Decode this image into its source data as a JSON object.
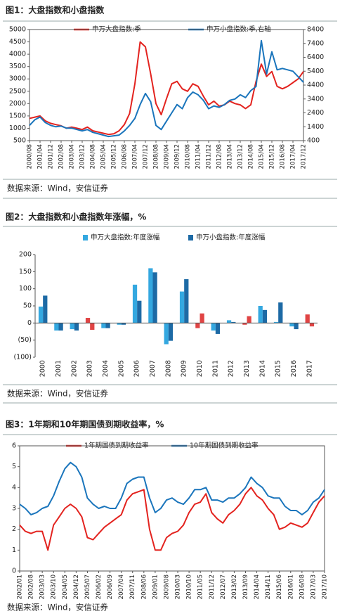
{
  "chart_data": [
    {
      "type": "line",
      "title": "图1：大盘指数和小盘指数",
      "source": "数据来源：Wind，安信证券",
      "categories": [
        "2000/08",
        null,
        "2001/04",
        null,
        "2001/12",
        null,
        "2002/08",
        null,
        "2003/04",
        null,
        "2003/12",
        null,
        "2004/08",
        null,
        "2005/04",
        null,
        "2005/12",
        null,
        "2006/08",
        null,
        "2007/04",
        null,
        "2007/12",
        null,
        "2008/08",
        null,
        "2009/04",
        null,
        "2009/12",
        null,
        "2010/08",
        null,
        "2011/04",
        null,
        "2011/12",
        null,
        "2012/08",
        null,
        "2013/04",
        null,
        "2013/12",
        null,
        "2014/08",
        null,
        "2015/04",
        null,
        "2015/12",
        null,
        "2016/08",
        null,
        "2017/04",
        null,
        "2017/12"
      ],
      "series": [
        {
          "name": "申万大盘指数:季",
          "color": "#e3231f",
          "values": [
            1400,
            1450,
            1500,
            1300,
            1200,
            1150,
            1100,
            1000,
            1050,
            1000,
            950,
            1050,
            900,
            850,
            800,
            750,
            780,
            900,
            1150,
            1600,
            2800,
            4500,
            4300,
            3200,
            2000,
            1550,
            2200,
            2800,
            2900,
            2600,
            2500,
            2800,
            2700,
            2300,
            1950,
            2100,
            1900,
            1950,
            2100,
            2000,
            1950,
            1800,
            1950,
            2900,
            3600,
            3100,
            3300,
            2700,
            2600,
            2700,
            2850,
            3000,
            3300
          ]
        },
        {
          "name": "申万小盘指数:季,右轴",
          "color": "#1a75bc",
          "axis": "y2",
          "values": [
            1500,
            1900,
            2100,
            1700,
            1500,
            1400,
            1450,
            1300,
            1300,
            1200,
            1100,
            1200,
            1000,
            900,
            800,
            700,
            750,
            800,
            1100,
            1500,
            2000,
            3000,
            3800,
            3200,
            1500,
            1200,
            1800,
            2400,
            3000,
            2700,
            3500,
            3900,
            3700,
            3300,
            2700,
            2900,
            2800,
            3000,
            3300,
            3400,
            3700,
            3500,
            4000,
            4300,
            7600,
            5200,
            6800,
            5500,
            5600,
            5500,
            5400,
            5000,
            4600
          ]
        }
      ],
      "ylim": [
        500,
        5000
      ],
      "yticks": [
        500,
        1000,
        1500,
        2000,
        2500,
        3000,
        3500,
        4000,
        4500,
        5000
      ],
      "y2lim": [
        400,
        8400
      ],
      "y2ticks": [
        400,
        1400,
        2400,
        3400,
        4400,
        5400,
        6400,
        7400,
        8400
      ]
    },
    {
      "type": "bar",
      "title": "图2：大盘指数和小盘指数年涨幅，%",
      "source": "数据来源：Wind，安信证券",
      "categories": [
        "2000",
        "2001",
        "2002",
        "2003",
        "2004",
        "2005",
        "2006",
        "2007",
        "2008",
        "2009",
        "2010",
        "2011",
        "2012",
        "2013",
        "2014",
        "2015",
        "2016",
        "2017"
      ],
      "series": [
        {
          "name": "申万大盘指数:年度涨幅",
          "color": "#34a8e0",
          "values": [
            48,
            -22,
            -18,
            15,
            -15,
            -5,
            112,
            160,
            -62,
            92,
            -15,
            -22,
            8,
            -5,
            50,
            3,
            -10,
            25
          ],
          "colors": [
            "#34a8e0",
            "#34a8e0",
            "#34a8e0",
            "#e04444",
            "#34a8e0",
            "#34a8e0",
            "#34a8e0",
            "#34a8e0",
            "#34a8e0",
            "#34a8e0",
            "#e04444",
            "#34a8e0",
            "#34a8e0",
            "#e04444",
            "#34a8e0",
            "#34a8e0",
            "#34a8e0",
            "#e04444"
          ]
        },
        {
          "name": "申万小盘指数:年度涨幅",
          "color": "#1d6aa5",
          "values": [
            80,
            -22,
            -22,
            -20,
            -15,
            -5,
            65,
            148,
            -52,
            128,
            28,
            -32,
            3,
            20,
            38,
            60,
            -18,
            -10
          ],
          "colors": [
            "#1d6aa5",
            "#1d6aa5",
            "#1d6aa5",
            "#e04444",
            "#1d6aa5",
            "#1d6aa5",
            "#1d6aa5",
            "#1d6aa5",
            "#1d6aa5",
            "#1d6aa5",
            "#e04444",
            "#1d6aa5",
            "#1d6aa5",
            "#e04444",
            "#1d6aa5",
            "#1d6aa5",
            "#1d6aa5",
            "#e04444"
          ]
        }
      ],
      "ylim": [
        -100,
        200
      ],
      "yticks": [
        {
          "value": -100,
          "label": "(100)"
        },
        {
          "value": -50,
          "label": "(50)"
        },
        0,
        50,
        100,
        150,
        200
      ]
    },
    {
      "type": "line",
      "title": "图3：1年期和10年期国债到期收益率，%",
      "source": "数据来源：Wind，安信证券",
      "categories": [
        "2002/01",
        null,
        "2002/08",
        null,
        "2003/03",
        null,
        "2003/10",
        null,
        "2004/05",
        null,
        "2004/12",
        null,
        "2005/07",
        null,
        "2006/02",
        null,
        "2006/09",
        null,
        "2007/04",
        null,
        "2007/11",
        null,
        "2008/06",
        null,
        "2009/01",
        null,
        "2009/08",
        null,
        "2010/03",
        null,
        "2010/10",
        null,
        "2011/05",
        null,
        "2011/12",
        null,
        "2012/07",
        null,
        "2013/02",
        null,
        "2013/09",
        null,
        "2014/04",
        null,
        "2014/11",
        null,
        "2015/06",
        null,
        "2016/01",
        null,
        "2016/08",
        null,
        "2017/03",
        null,
        "2017/10"
      ],
      "series": [
        {
          "name": "1年期国债到期收益率",
          "color": "#e3231f",
          "values": [
            2.2,
            1.9,
            1.8,
            1.9,
            1.9,
            1.0,
            2.2,
            2.6,
            3.0,
            3.2,
            3.0,
            2.6,
            1.6,
            1.5,
            1.8,
            2.1,
            2.3,
            2.5,
            2.7,
            3.4,
            3.7,
            3.8,
            3.9,
            2.0,
            1.0,
            1.0,
            1.6,
            1.8,
            1.9,
            2.2,
            2.8,
            3.2,
            3.3,
            3.7,
            2.8,
            2.5,
            2.3,
            2.7,
            2.9,
            3.2,
            3.7,
            4.0,
            3.6,
            3.4,
            3.0,
            2.7,
            2.0,
            2.1,
            2.3,
            2.2,
            2.1,
            2.3,
            2.8,
            3.3,
            3.6
          ]
        },
        {
          "name": "10年期国债到期收益率",
          "color": "#1a75bc",
          "values": [
            3.2,
            3.0,
            2.7,
            2.8,
            3.0,
            3.1,
            3.6,
            4.3,
            4.9,
            5.2,
            5.0,
            4.5,
            3.5,
            3.2,
            3.0,
            3.1,
            3.0,
            3.0,
            3.5,
            4.2,
            4.4,
            4.5,
            4.5,
            3.5,
            2.8,
            3.0,
            3.4,
            3.5,
            3.3,
            3.2,
            3.5,
            3.9,
            3.9,
            4.0,
            3.4,
            3.4,
            3.3,
            3.5,
            3.5,
            3.7,
            4.0,
            4.5,
            4.2,
            4.0,
            3.6,
            3.5,
            3.5,
            3.1,
            2.9,
            2.9,
            2.7,
            2.9,
            3.3,
            3.5,
            3.9
          ]
        }
      ],
      "ylim": [
        0,
        6
      ],
      "yticks": [
        0,
        1,
        2,
        3,
        4,
        5,
        6
      ]
    }
  ]
}
